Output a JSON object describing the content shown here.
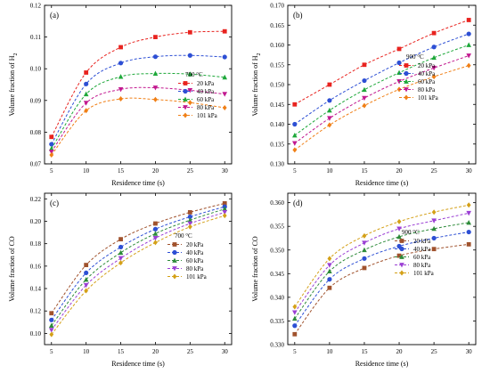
{
  "chart_data": [
    {
      "type": "line",
      "panel_label": "(a)",
      "legend_title": "700 °C",
      "xlabel": "Residence time (s)",
      "ylabel_html": [
        "Volume fraction of H",
        "2"
      ],
      "x": [
        5,
        10,
        15,
        20,
        25,
        30
      ],
      "xlim": [
        4,
        31
      ],
      "xticks": [
        5,
        10,
        15,
        20,
        25,
        30
      ],
      "ylim": [
        0.07,
        0.12
      ],
      "yticks": [
        0.07,
        0.08,
        0.09,
        0.1,
        0.11,
        0.12
      ],
      "ytick_labels": [
        "0.07",
        "0.08",
        "0.09",
        "0.10",
        "0.11",
        "0.12"
      ],
      "legend_position": "center",
      "series": [
        {
          "name": "20 kPa",
          "color": "#e8231f",
          "marker": "square",
          "values": [
            0.0785,
            0.0988,
            0.1068,
            0.11,
            0.1115,
            0.1118
          ]
        },
        {
          "name": "40 kPa",
          "color": "#2d4fd4",
          "marker": "circle",
          "values": [
            0.0762,
            0.0952,
            0.1018,
            0.1038,
            0.1042,
            0.1037
          ]
        },
        {
          "name": "60 kPa",
          "color": "#1ea83a",
          "marker": "triangle-up",
          "values": [
            0.0748,
            0.092,
            0.0975,
            0.0985,
            0.0983,
            0.0973
          ]
        },
        {
          "name": "80 kPa",
          "color": "#c2188f",
          "marker": "triangle-down",
          "values": [
            0.0738,
            0.0892,
            0.0935,
            0.094,
            0.0932,
            0.092
          ]
        },
        {
          "name": "101 kPa",
          "color": "#f07f16",
          "marker": "diamond",
          "values": [
            0.0728,
            0.0868,
            0.0905,
            0.0903,
            0.0893,
            0.0877
          ]
        }
      ]
    },
    {
      "type": "line",
      "panel_label": "(b)",
      "legend_title": "900 °C",
      "xlabel": "Residence time (s)",
      "ylabel_html": [
        "Volume fraction of H",
        "2"
      ],
      "x": [
        5,
        10,
        15,
        20,
        25,
        30
      ],
      "xlim": [
        4,
        31
      ],
      "xticks": [
        5,
        10,
        15,
        20,
        25,
        30
      ],
      "ylim": [
        0.13,
        0.17
      ],
      "yticks": [
        0.13,
        0.135,
        0.14,
        0.145,
        0.15,
        0.155,
        0.16,
        0.165,
        0.17
      ],
      "ytick_labels": [
        "0.130",
        "0.135",
        "0.140",
        "0.145",
        "0.150",
        "0.155",
        "0.160",
        "0.165",
        "0.170"
      ],
      "legend_position": "right",
      "series": [
        {
          "name": "20 kPa",
          "color": "#e8231f",
          "marker": "square",
          "values": [
            0.145,
            0.15,
            0.155,
            0.159,
            0.163,
            0.1663
          ]
        },
        {
          "name": "40 kPa",
          "color": "#2d4fd4",
          "marker": "circle",
          "values": [
            0.14,
            0.146,
            0.151,
            0.1555,
            0.1595,
            0.1628
          ]
        },
        {
          "name": "60 kPa",
          "color": "#1ea83a",
          "marker": "triangle-up",
          "values": [
            0.1372,
            0.1435,
            0.1487,
            0.153,
            0.1568,
            0.16
          ]
        },
        {
          "name": "80 kPa",
          "color": "#c2188f",
          "marker": "triangle-down",
          "values": [
            0.1352,
            0.1415,
            0.1466,
            0.1508,
            0.1542,
            0.1573
          ]
        },
        {
          "name": "101 kPa",
          "color": "#f07f16",
          "marker": "diamond",
          "values": [
            0.1335,
            0.1398,
            0.1447,
            0.1488,
            0.152,
            0.1548
          ]
        }
      ]
    },
    {
      "type": "line",
      "panel_label": "(c)",
      "legend_title": "700 °C",
      "xlabel": "Residence time (s)",
      "ylabel_html": [
        "Volume fraction of CO",
        ""
      ],
      "x": [
        5,
        10,
        15,
        20,
        25,
        30
      ],
      "xlim": [
        4,
        31
      ],
      "xticks": [
        5,
        10,
        15,
        20,
        25,
        30
      ],
      "ylim": [
        0.09,
        0.225
      ],
      "yticks": [
        0.1,
        0.12,
        0.14,
        0.16,
        0.18,
        0.2,
        0.22
      ],
      "ytick_labels": [
        "0.10",
        "0.12",
        "0.14",
        "0.16",
        "0.18",
        "0.20",
        "0.22"
      ],
      "legend_position": "center-right",
      "series": [
        {
          "name": "20 kPa",
          "color": "#a0522d",
          "marker": "square",
          "values": [
            0.118,
            0.161,
            0.184,
            0.198,
            0.208,
            0.216
          ]
        },
        {
          "name": "40 kPa",
          "color": "#2d4fd4",
          "marker": "circle",
          "values": [
            0.112,
            0.154,
            0.177,
            0.193,
            0.204,
            0.213
          ]
        },
        {
          "name": "60 kPa",
          "color": "#2e8b3a",
          "marker": "triangle-up",
          "values": [
            0.107,
            0.148,
            0.172,
            0.189,
            0.201,
            0.211
          ]
        },
        {
          "name": "80 kPa",
          "color": "#9b3fd4",
          "marker": "triangle-down",
          "values": [
            0.103,
            0.143,
            0.167,
            0.185,
            0.198,
            0.208
          ]
        },
        {
          "name": "101 kPa",
          "color": "#d4a017",
          "marker": "diamond",
          "values": [
            0.099,
            0.138,
            0.163,
            0.181,
            0.195,
            0.205
          ]
        }
      ]
    },
    {
      "type": "line",
      "panel_label": "(d)",
      "legend_title": "900 °C",
      "xlabel": "Residence time (s)",
      "ylabel_html": [
        "Volume fraction of CO",
        ""
      ],
      "x": [
        5,
        10,
        15,
        20,
        25,
        30
      ],
      "xlim": [
        4,
        31
      ],
      "xticks": [
        5,
        10,
        15,
        20,
        25,
        30
      ],
      "ylim": [
        0.33,
        0.362
      ],
      "yticks": [
        0.33,
        0.335,
        0.34,
        0.345,
        0.35,
        0.355,
        0.36
      ],
      "ytick_labels": [
        "0.330",
        "0.335",
        "0.340",
        "0.345",
        "0.350",
        "0.355",
        "0.360"
      ],
      "legend_position": "right",
      "series": [
        {
          "name": "20 kPa",
          "color": "#a0522d",
          "marker": "square",
          "values": [
            0.3322,
            0.342,
            0.3462,
            0.3488,
            0.3502,
            0.3512
          ]
        },
        {
          "name": "40 kPa",
          "color": "#2d4fd4",
          "marker": "circle",
          "values": [
            0.334,
            0.3438,
            0.3482,
            0.3508,
            0.3525,
            0.3538
          ]
        },
        {
          "name": "60 kPa",
          "color": "#2e8b3a",
          "marker": "triangle-up",
          "values": [
            0.3355,
            0.3455,
            0.35,
            0.3528,
            0.3545,
            0.3558
          ]
        },
        {
          "name": "80 kPa",
          "color": "#9b3fd4",
          "marker": "triangle-down",
          "values": [
            0.3368,
            0.3468,
            0.3515,
            0.3545,
            0.3562,
            0.3578
          ]
        },
        {
          "name": "101 kPa",
          "color": "#d4a017",
          "marker": "diamond",
          "values": [
            0.338,
            0.3482,
            0.353,
            0.356,
            0.358,
            0.3595
          ]
        }
      ]
    }
  ]
}
